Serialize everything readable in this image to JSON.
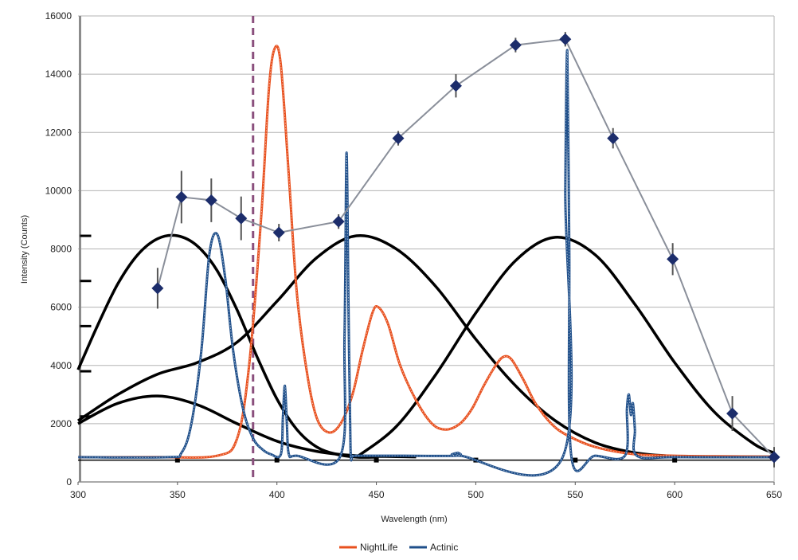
{
  "chart_data": {
    "type": "line",
    "xlabel": "Wavelength (nm)",
    "ylabel": "Intensity (Counts)",
    "xlim": [
      300,
      650
    ],
    "ylim": [
      0,
      16000
    ],
    "x_ticks": [
      300,
      350,
      400,
      450,
      500,
      550,
      600,
      650
    ],
    "y_ticks": [
      0,
      2000,
      4000,
      6000,
      8000,
      10000,
      12000,
      14000,
      16000
    ],
    "grid": "horizontal",
    "legend_position": "bottom",
    "colors": {
      "nightlife": "#e8501e",
      "actinic": "#1f4f8a",
      "points": "#1c2d6b",
      "points_line": "#8a8f9a",
      "response_curves": "#000000",
      "dashed_marker": "#8a4f7d",
      "grid": "#b3b3b3"
    },
    "series": [
      {
        "name": "NightLife",
        "color": "#e8501e",
        "x": [
          300,
          340,
          370,
          380,
          386,
          392,
          396,
          399,
          402,
          406,
          410,
          415,
          420,
          426,
          432,
          438,
          443,
          448,
          451,
          456,
          462,
          470,
          478,
          485,
          492,
          498,
          504,
          510,
          514,
          518,
          524,
          530,
          538,
          546,
          560,
          580,
          600,
          620,
          650
        ],
        "y": [
          850,
          850,
          900,
          1500,
          4000,
          9000,
          13500,
          14900,
          14300,
          10500,
          6500,
          3800,
          2200,
          1700,
          2000,
          3000,
          4500,
          5800,
          6000,
          5400,
          4000,
          2800,
          2000,
          1800,
          2000,
          2500,
          3300,
          4000,
          4300,
          4200,
          3500,
          2700,
          2000,
          1600,
          1200,
          950,
          900,
          880,
          870
        ]
      },
      {
        "name": "Actinic",
        "color": "#1f4f8a",
        "x": [
          300,
          345,
          352,
          357,
          362,
          366,
          370,
          374,
          378,
          383,
          388,
          393,
          397,
          402,
          403,
          404,
          405,
          406,
          410,
          432,
          434,
          435,
          436,
          437,
          438,
          440,
          460,
          490,
          491,
          492,
          544,
          545,
          546,
          547,
          548,
          560,
          575,
          576,
          577,
          578,
          579,
          580,
          581,
          600,
          650
        ],
        "y": [
          850,
          850,
          1000,
          2000,
          4500,
          7800,
          8500,
          7000,
          4500,
          2500,
          1500,
          1100,
          950,
          950,
          2200,
          3300,
          2000,
          950,
          900,
          900,
          5000,
          11300,
          6000,
          1200,
          900,
          900,
          900,
          900,
          1000,
          900,
          900,
          10000,
          14800,
          8000,
          900,
          900,
          900,
          2500,
          3000,
          2300,
          2700,
          1800,
          900,
          850,
          850
        ]
      }
    ],
    "points_series": {
      "x": [
        340,
        352,
        367,
        382,
        401,
        431,
        461,
        490,
        520,
        545,
        569,
        599,
        629,
        650
      ],
      "y": [
        6650,
        9780,
        9670,
        9050,
        8560,
        8940,
        11800,
        13600,
        15000,
        15200,
        11800,
        7650,
        2350,
        850
      ],
      "error": [
        700,
        900,
        750,
        750,
        300,
        250,
        250,
        400,
        250,
        250,
        350,
        550,
        600,
        350
      ]
    },
    "response_curves": [
      {
        "x": [
          300,
          310,
          320,
          330,
          340,
          350,
          360,
          370,
          380,
          390,
          400,
          410,
          420,
          430,
          440,
          450
        ],
        "y": [
          3850,
          5400,
          6800,
          7800,
          8350,
          8450,
          8100,
          7250,
          5900,
          4300,
          2850,
          1800,
          1200,
          950,
          850,
          850
        ]
      },
      {
        "x": [
          300,
          320,
          340,
          360,
          380,
          400,
          420,
          440,
          460,
          480,
          500,
          520,
          540,
          560,
          580,
          600,
          620,
          640,
          650
        ],
        "y": [
          2100,
          3000,
          3700,
          4100,
          4800,
          6200,
          7700,
          8450,
          8000,
          6700,
          4900,
          3300,
          2100,
          1350,
          1000,
          880,
          860,
          860,
          860
        ]
      },
      {
        "x": [
          300,
          320,
          340,
          360,
          380,
          400,
          420,
          440,
          460,
          470
        ],
        "y": [
          2000,
          2700,
          2950,
          2650,
          2000,
          1400,
          1050,
          900,
          870,
          860
        ]
      },
      {
        "x": [
          440,
          460,
          480,
          500,
          520,
          540,
          560,
          580,
          600,
          620,
          640,
          650
        ],
        "y": [
          850,
          1900,
          3700,
          5800,
          7600,
          8400,
          7800,
          6100,
          4100,
          2400,
          1300,
          1000
        ]
      }
    ],
    "baseline": {
      "y": 750,
      "x_dots": [
        350,
        400,
        450,
        500,
        550,
        600
      ]
    },
    "dashed_marker_x": 388,
    "left_axis_ticks": [
      8450,
      6900,
      5350,
      3800,
      2250
    ]
  }
}
